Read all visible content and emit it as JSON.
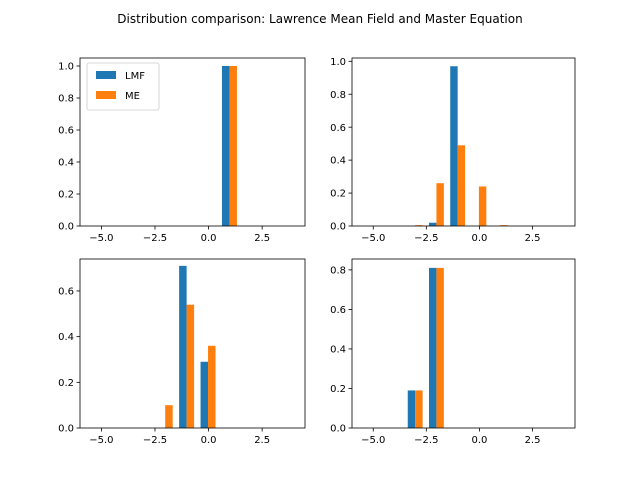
{
  "figure": {
    "title": "Distribution comparison: Lawrence Mean Field and Master Equation"
  },
  "chart_data": [
    {
      "type": "bar",
      "panel": "top-left",
      "xlim": [
        -6.0,
        4.5
      ],
      "ylim": [
        0.0,
        1.05
      ],
      "xticks": [
        -5.0,
        -2.5,
        0.0,
        2.5
      ],
      "xtick_labels": [
        "−5.0",
        "−2.5",
        "0.0",
        "2.5"
      ],
      "yticks": [
        0.0,
        0.2,
        0.4,
        0.6,
        0.8,
        1.0
      ],
      "ytick_labels": [
        "0.0",
        "0.2",
        "0.4",
        "0.6",
        "0.8",
        "1.0"
      ],
      "legend": {
        "location": "upper-left",
        "entries": [
          "LMF",
          "ME"
        ]
      },
      "series": [
        {
          "name": "LMF",
          "color": "#1f77b4",
          "x": [
            0.8
          ],
          "values": [
            1.0
          ]
        },
        {
          "name": "ME",
          "color": "#ff7f0e",
          "x": [
            1.15
          ],
          "values": [
            1.0
          ]
        }
      ]
    },
    {
      "type": "bar",
      "panel": "top-right",
      "xlim": [
        -6.0,
        4.5
      ],
      "ylim": [
        0.0,
        1.02
      ],
      "xticks": [
        -5.0,
        -2.5,
        0.0,
        2.5
      ],
      "xtick_labels": [
        "−5.0",
        "−2.5",
        "0.0",
        "2.5"
      ],
      "yticks": [
        0.0,
        0.2,
        0.4,
        0.6,
        0.8,
        1.0
      ],
      "ytick_labels": [
        "0.0",
        "0.2",
        "0.4",
        "0.6",
        "0.8",
        "1.0"
      ],
      "series": [
        {
          "name": "LMF",
          "color": "#1f77b4",
          "x": [
            -2.2,
            -1.2
          ],
          "values": [
            0.02,
            0.97
          ]
        },
        {
          "name": "ME",
          "color": "#ff7f0e",
          "x": [
            -2.85,
            -1.85,
            -0.85,
            0.15,
            1.15
          ],
          "values": [
            0.005,
            0.26,
            0.49,
            0.24,
            0.005
          ]
        }
      ]
    },
    {
      "type": "bar",
      "panel": "bottom-left",
      "xlim": [
        -6.0,
        4.5
      ],
      "ylim": [
        0.0,
        0.74
      ],
      "xticks": [
        -5.0,
        -2.5,
        0.0,
        2.5
      ],
      "xtick_labels": [
        "−5.0",
        "−2.5",
        "0.0",
        "2.5"
      ],
      "yticks": [
        0.0,
        0.2,
        0.4,
        0.6
      ],
      "ytick_labels": [
        "0.0",
        "0.2",
        "0.4",
        "0.6"
      ],
      "series": [
        {
          "name": "LMF",
          "color": "#1f77b4",
          "x": [
            -1.2,
            -0.2
          ],
          "values": [
            0.71,
            0.29
          ]
        },
        {
          "name": "ME",
          "color": "#ff7f0e",
          "x": [
            -1.85,
            -0.85,
            0.15
          ],
          "values": [
            0.1,
            0.54,
            0.36
          ]
        }
      ]
    },
    {
      "type": "bar",
      "panel": "bottom-right",
      "xlim": [
        -6.0,
        4.5
      ],
      "ylim": [
        0.0,
        0.855
      ],
      "xticks": [
        -5.0,
        -2.5,
        0.0,
        2.5
      ],
      "xtick_labels": [
        "−5.0",
        "−2.5",
        "0.0",
        "2.5"
      ],
      "yticks": [
        0.0,
        0.2,
        0.4,
        0.6,
        0.8
      ],
      "ytick_labels": [
        "0.0",
        "0.2",
        "0.4",
        "0.6",
        "0.8"
      ],
      "series": [
        {
          "name": "LMF",
          "color": "#1f77b4",
          "x": [
            -3.2,
            -2.2
          ],
          "values": [
            0.19,
            0.81
          ]
        },
        {
          "name": "ME",
          "color": "#ff7f0e",
          "x": [
            -2.85,
            -1.85
          ],
          "values": [
            0.19,
            0.81
          ]
        }
      ]
    }
  ]
}
